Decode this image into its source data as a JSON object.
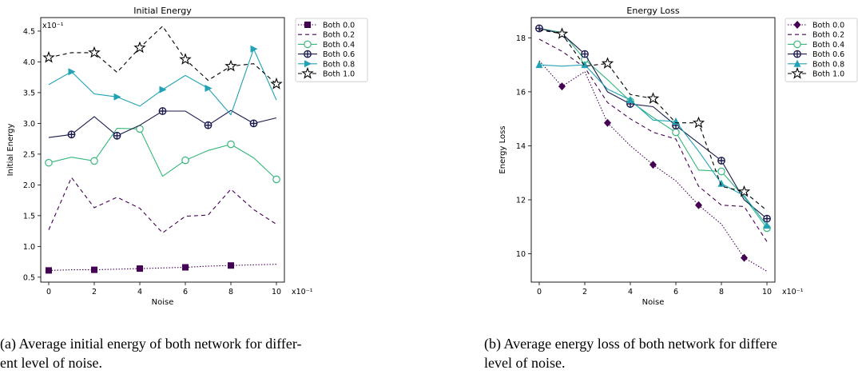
{
  "chart_data": [
    {
      "type": "line",
      "title": "Initial Energy",
      "xlabel": "Noise",
      "ylabel": "Initial Energy",
      "x_scale_label": "x10⁻¹",
      "y_scale_label": "x10⁻¹",
      "xlim": [
        -0.35,
        10.35
      ],
      "ylim": [
        0.42,
        4.72
      ],
      "x_ticks": [
        0,
        2,
        4,
        6,
        8,
        10
      ],
      "y_ticks": [
        0.5,
        1.0,
        1.5,
        2.0,
        2.5,
        3.0,
        3.5,
        4.0,
        4.5
      ],
      "x_tick_labels": [
        "0",
        "2",
        "4",
        "6",
        "8",
        "10"
      ],
      "y_tick_labels": [
        "0.5",
        "1.0",
        "1.5",
        "2.0",
        "2.5",
        "3.0",
        "3.5",
        "4.0",
        "4.5"
      ],
      "grid": false,
      "legend_position": "outside-right-top",
      "x": [
        0,
        1,
        2,
        3,
        4,
        5,
        6,
        7,
        8,
        9,
        10
      ],
      "series": [
        {
          "name": "Both 0.0",
          "color": "#440154",
          "dash": "1.5,2",
          "marker": "square",
          "marker_every": [
            0,
            2,
            4,
            6,
            8
          ],
          "values": [
            0.61,
            0.62,
            0.62,
            0.63,
            0.64,
            0.65,
            0.66,
            0.68,
            0.69,
            0.7,
            0.71
          ]
        },
        {
          "name": "Both 0.2",
          "color": "#440154",
          "dash": "5,4",
          "marker": "none",
          "marker_every": [],
          "values": [
            1.27,
            2.12,
            1.63,
            1.8,
            1.62,
            1.22,
            1.49,
            1.51,
            1.93,
            1.6,
            1.36
          ]
        },
        {
          "name": "Both 0.4",
          "color": "#35b779",
          "dash": "",
          "marker": "circle-open",
          "marker_every": [
            0,
            2,
            4,
            6,
            8,
            10
          ],
          "values": [
            2.36,
            2.45,
            2.39,
            2.92,
            2.91,
            2.14,
            2.4,
            2.56,
            2.66,
            2.44,
            2.09
          ]
        },
        {
          "name": "Both 0.6",
          "color": "#1a1a4e",
          "dash": "",
          "marker": "circle-plus",
          "marker_every": [
            1,
            3,
            5,
            7,
            9
          ],
          "values": [
            2.77,
            2.82,
            3.11,
            2.8,
            2.97,
            3.2,
            3.2,
            2.97,
            3.21,
            3.0,
            3.09
          ]
        },
        {
          "name": "Both 0.8",
          "color": "#21a2b5",
          "dash": "",
          "marker": "triangle-right",
          "marker_every": [
            1,
            3,
            5,
            7,
            9
          ],
          "values": [
            3.63,
            3.84,
            3.48,
            3.43,
            3.28,
            3.55,
            3.78,
            3.57,
            3.14,
            4.21,
            3.38
          ]
        },
        {
          "name": "Both 1.0",
          "color": "#000000",
          "dash": "5,4",
          "marker": "star",
          "marker_every": [
            0,
            2,
            4,
            6,
            8,
            10
          ],
          "values": [
            4.07,
            4.15,
            4.15,
            3.83,
            4.23,
            4.58,
            4.04,
            3.7,
            3.93,
            3.97,
            3.64
          ]
        }
      ]
    },
    {
      "type": "line",
      "title": "Energy Loss",
      "xlabel": "Noise",
      "ylabel": "Energy Loss",
      "x_scale_label": "x10⁻¹",
      "xlim": [
        -0.35,
        10.35
      ],
      "ylim": [
        8.95,
        18.75
      ],
      "x_ticks": [
        0,
        2,
        4,
        6,
        8,
        10
      ],
      "y_ticks": [
        10,
        12,
        14,
        16,
        18
      ],
      "x_tick_labels": [
        "0",
        "2",
        "4",
        "6",
        "8",
        "10"
      ],
      "y_tick_labels": [
        "10",
        "12",
        "14",
        "16",
        "18"
      ],
      "grid": false,
      "legend_position": "outside-right-top",
      "x": [
        0,
        1,
        2,
        3,
        4,
        5,
        6,
        7,
        8,
        9,
        10
      ],
      "series": [
        {
          "name": "Both 0.0",
          "color": "#440154",
          "dash": "1.5,2",
          "marker": "diamond",
          "marker_every": [
            1,
            3,
            5,
            7,
            9
          ],
          "values": [
            17.15,
            16.2,
            16.75,
            14.85,
            14.0,
            13.3,
            12.7,
            11.8,
            11.1,
            9.85,
            9.35
          ]
        },
        {
          "name": "Both 0.2",
          "color": "#440154",
          "dash": "5,4",
          "marker": "none",
          "marker_every": [],
          "values": [
            17.95,
            17.5,
            16.9,
            15.6,
            15.0,
            14.5,
            14.25,
            12.5,
            11.8,
            11.75,
            10.45
          ]
        },
        {
          "name": "Both 0.4",
          "color": "#35b779",
          "dash": "",
          "marker": "circle-open",
          "marker_every": [
            0,
            2,
            4,
            6,
            8,
            10
          ],
          "values": [
            18.35,
            18.2,
            17.2,
            16.45,
            15.65,
            15.05,
            14.5,
            13.1,
            13.05,
            12.1,
            10.95
          ]
        },
        {
          "name": "Both 0.6",
          "color": "#1a1a4e",
          "dash": "",
          "marker": "circle-plus",
          "marker_every": [
            0,
            2,
            4,
            6,
            8,
            10
          ],
          "values": [
            18.35,
            18.15,
            17.4,
            16.0,
            15.55,
            15.45,
            14.75,
            14.1,
            13.45,
            12.0,
            11.3
          ]
        },
        {
          "name": "Both 0.8",
          "color": "#21a2b5",
          "dash": "",
          "marker": "triangle-up",
          "marker_every": [
            0,
            2,
            4,
            6,
            8,
            10
          ],
          "values": [
            17.0,
            16.95,
            17.0,
            16.1,
            15.7,
            14.95,
            14.9,
            13.8,
            12.6,
            12.15,
            11.05
          ]
        },
        {
          "name": "Both 1.0",
          "color": "#000000",
          "dash": "5,4",
          "marker": "star",
          "marker_every": [
            1,
            3,
            5,
            7,
            9
          ],
          "values": [
            18.3,
            18.15,
            16.95,
            17.05,
            15.9,
            15.75,
            14.85,
            14.85,
            12.5,
            12.3,
            11.6
          ]
        }
      ]
    }
  ],
  "captions": {
    "a": "(a) Average initial energy of both network for differ-\nent level of noise.",
    "b": "(b) Average energy loss of both network for differe\nlevel of noise."
  }
}
